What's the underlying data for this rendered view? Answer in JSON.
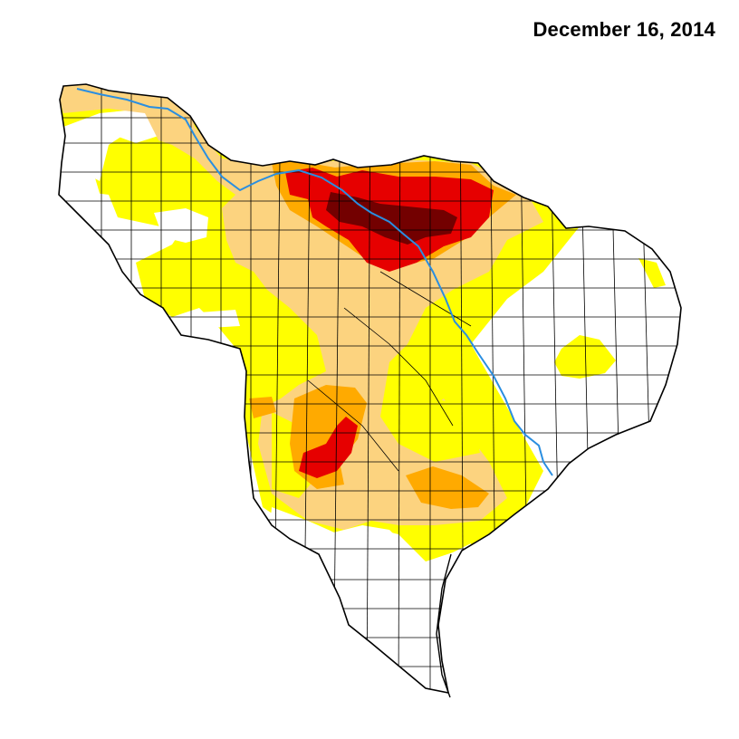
{
  "title": "December 16, 2014",
  "colors": {
    "background": "#ffffff",
    "abnormally_dry": "#ffff00",
    "moderate": "#fcd37f",
    "severe": "#ffaa00",
    "extreme": "#e60000",
    "exceptional": "#730000",
    "river": "#2a8ee0",
    "county_lines": "#000000"
  },
  "map": {
    "region": "drought-monitor-region",
    "river_name_icon": "river-line"
  }
}
